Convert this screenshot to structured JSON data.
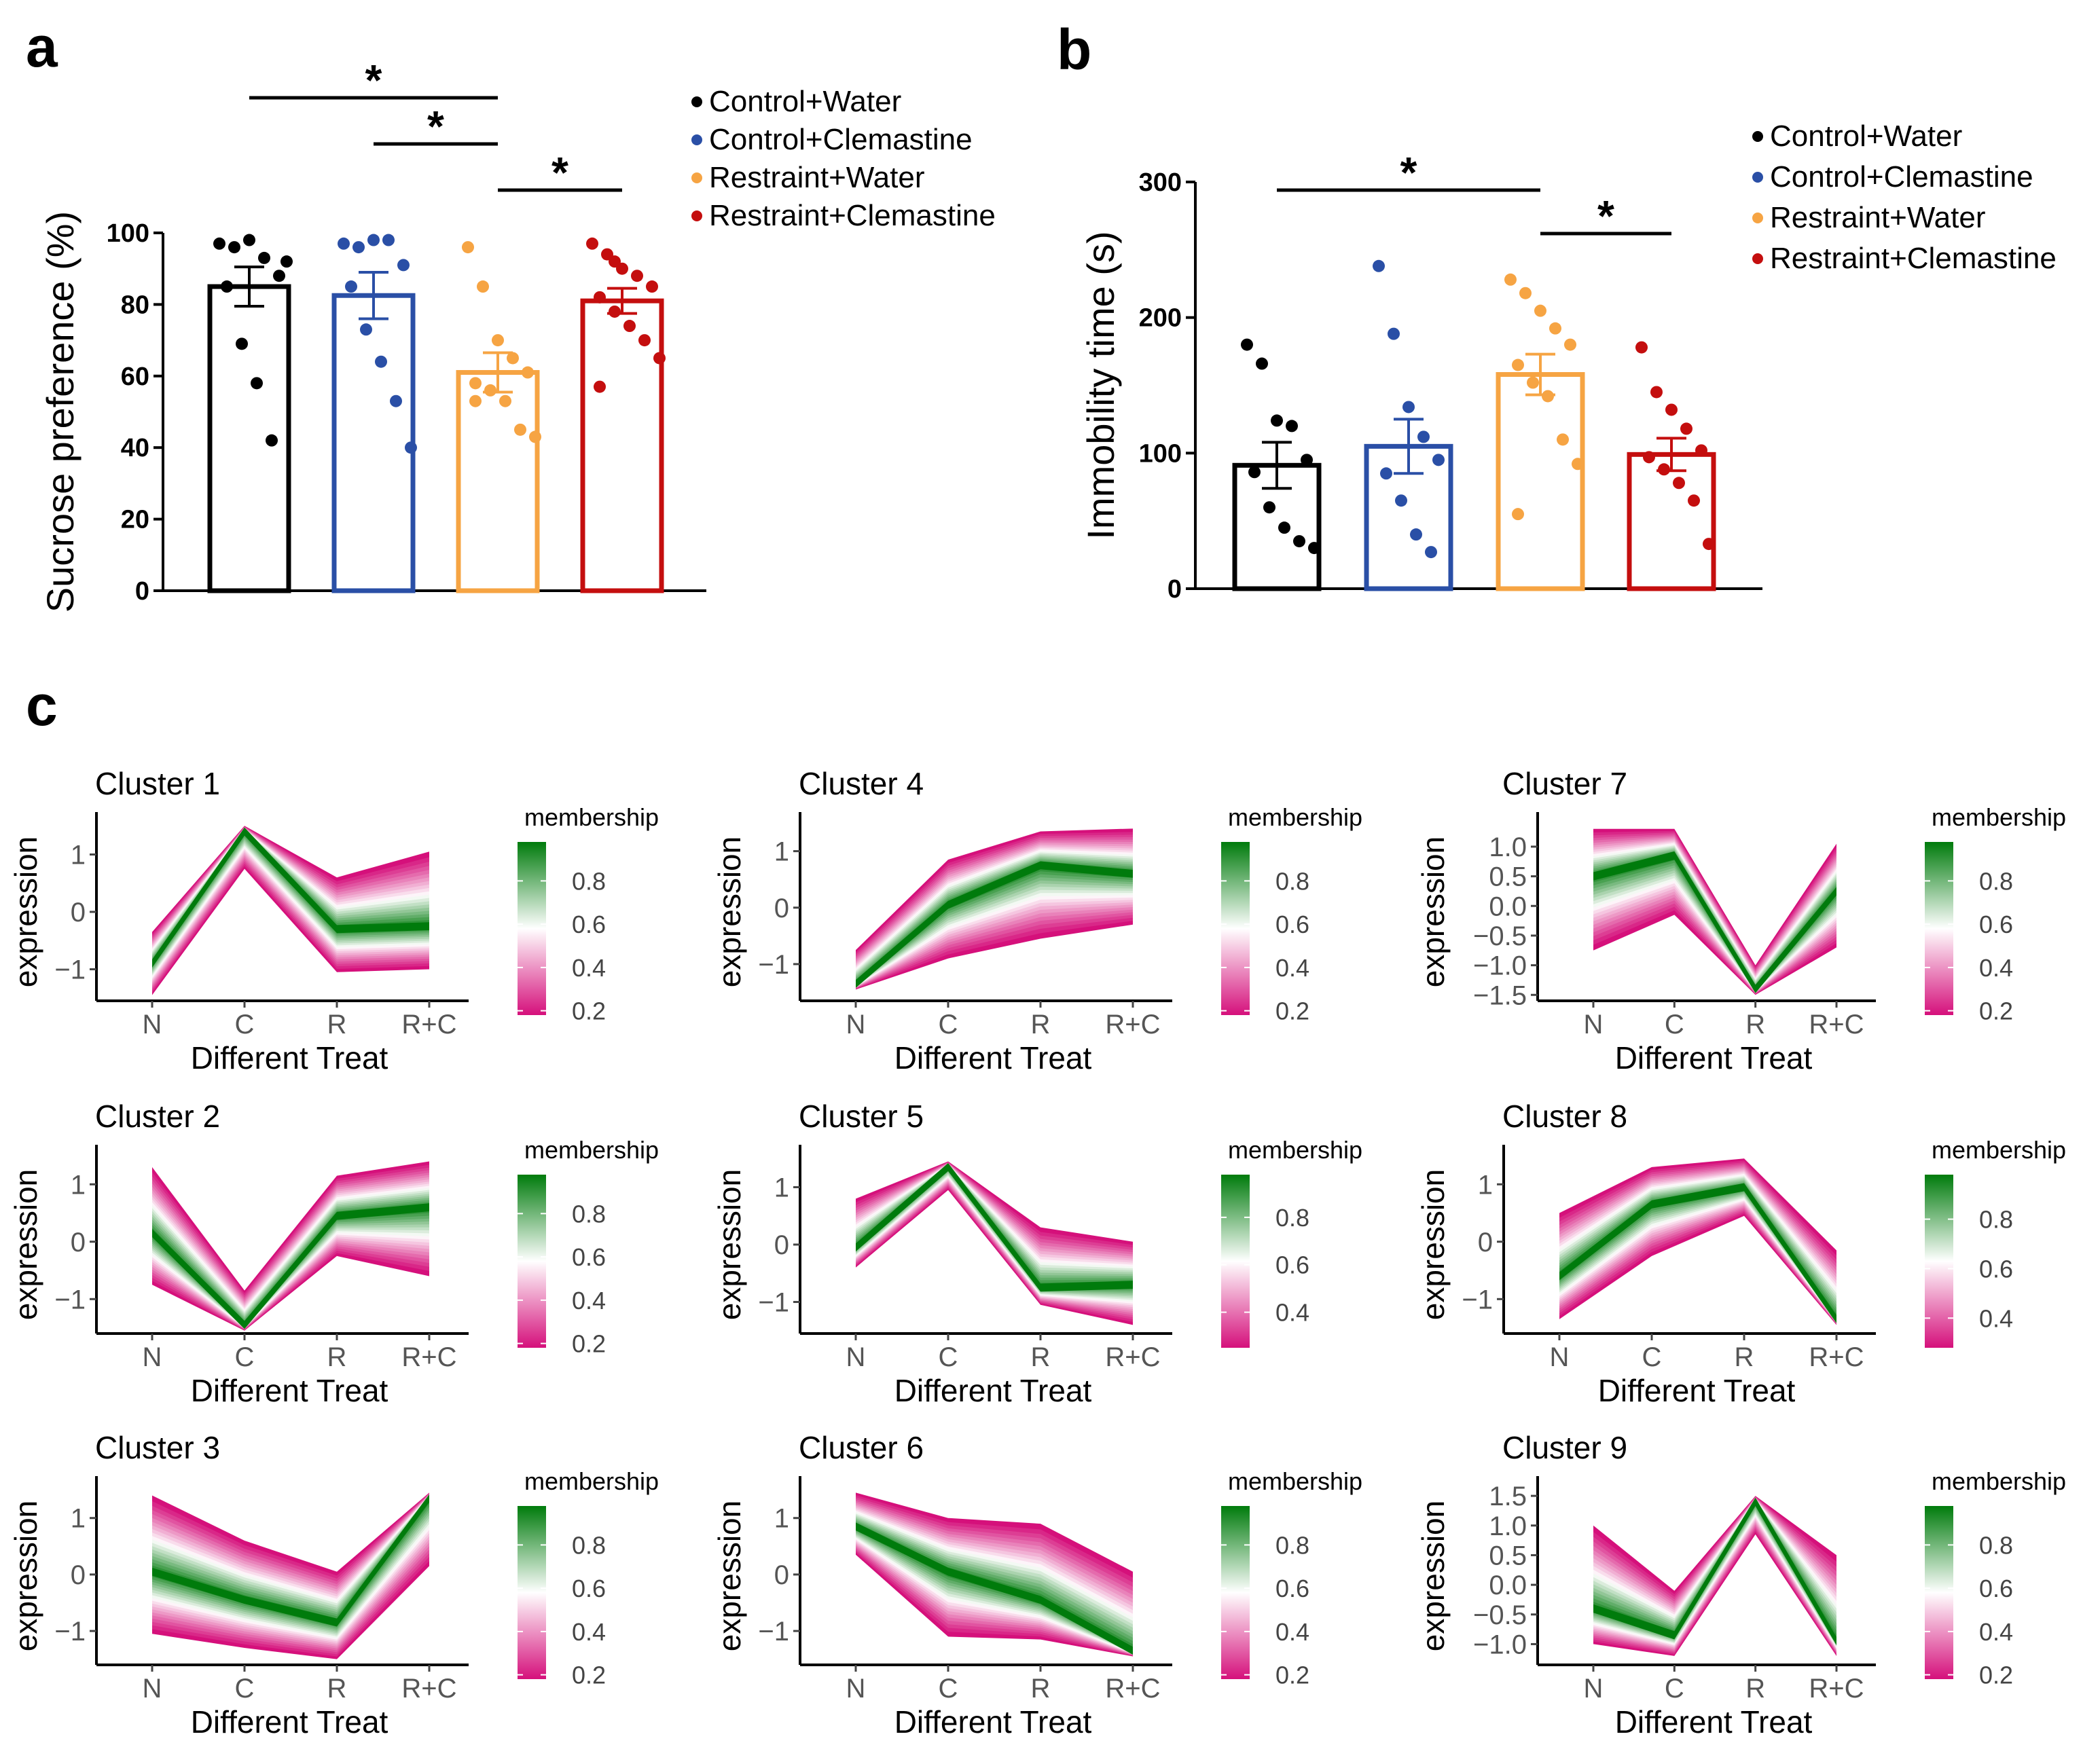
{
  "panels": {
    "a": "a",
    "b": "b",
    "c": "c"
  },
  "colors": {
    "Control+Water": "#000000",
    "Control+Clemastine": "#2a4fa6",
    "Restraint+Water": "#f6a443",
    "Restraint+Clemastine": "#c40e0e",
    "membership_low": "#d5107b",
    "membership_mid": "#ffffff",
    "membership_high": "#007b0c"
  },
  "chart_data": [
    {
      "id": "a",
      "type": "bar",
      "ylabel": "Sucrose preference (%)",
      "ylim": [
        0,
        100
      ],
      "yticks": [
        0,
        20,
        40,
        60,
        80,
        100
      ],
      "legend": [
        "Control+Water",
        "Control+Clemastine",
        "Restraint+Water",
        "Restraint+Clemastine"
      ],
      "legend_position": "top-right",
      "categories": [
        "Control+Water",
        "Control+Clemastine",
        "Restraint+Water",
        "Restraint+Clemastine"
      ],
      "values": [
        85,
        82.5,
        61,
        81
      ],
      "sem": [
        5.5,
        6.5,
        5.5,
        3.5
      ],
      "points": [
        [
          97,
          96,
          98,
          93,
          88,
          85,
          69,
          58,
          42,
          92
        ],
        [
          97,
          96,
          98,
          98,
          91,
          85,
          73,
          64,
          53,
          40
        ],
        [
          96,
          85,
          70,
          65,
          61,
          58,
          56,
          53,
          45,
          43,
          53
        ],
        [
          97,
          94,
          90,
          88,
          85,
          82,
          78,
          74,
          70,
          65,
          57,
          92
        ]
      ],
      "significance": [
        {
          "from": 0,
          "to": 2,
          "label": "*"
        },
        {
          "from": 1,
          "to": 2,
          "label": "*"
        },
        {
          "from": 2,
          "to": 3,
          "label": "*"
        }
      ]
    },
    {
      "id": "b",
      "type": "bar",
      "ylabel": "Immobility time (s)",
      "ylim": [
        0,
        300
      ],
      "yticks": [
        0,
        100,
        200,
        300
      ],
      "legend": [
        "Control+Water",
        "Control+Clemastine",
        "Restraint+Water",
        "Restraint+Clemastine"
      ],
      "legend_position": "top-right",
      "categories": [
        "Control+Water",
        "Control+Clemastine",
        "Restraint+Water",
        "Restraint+Clemastine"
      ],
      "values": [
        91,
        105,
        158,
        99
      ],
      "sem": [
        17,
        20,
        15,
        12
      ],
      "points": [
        [
          180,
          166,
          124,
          120,
          95,
          86,
          60,
          45,
          35,
          30
        ],
        [
          238,
          188,
          134,
          112,
          95,
          85,
          65,
          40,
          27
        ],
        [
          228,
          218,
          205,
          192,
          180,
          165,
          152,
          142,
          110,
          92,
          55
        ],
        [
          178,
          145,
          132,
          118,
          102,
          97,
          88,
          78,
          65,
          33
        ]
      ],
      "significance": [
        {
          "from": 0,
          "to": 2,
          "label": "*"
        },
        {
          "from": 2,
          "to": 3,
          "label": "*"
        }
      ]
    },
    {
      "id": "c",
      "type": "line",
      "xlabel": "Different Treat",
      "ylabel": "expression",
      "categories": [
        "N",
        "C",
        "R",
        "R+C"
      ],
      "membership_label": "membership",
      "clusters": [
        {
          "title": "Cluster 1",
          "ylim": [
            -1.55,
            1.55
          ],
          "yticks": [
            "1",
            "0",
            "−1"
          ],
          "ytickvals": [
            1,
            0,
            -1
          ],
          "mticks": [
            "0.8",
            "0.6",
            "0.4",
            "0.2"
          ],
          "mtickvals": [
            0.8,
            0.6,
            0.4,
            0.2
          ],
          "mrange": [
            0.18,
            0.98
          ],
          "core": [
            -0.9,
            1.4,
            -0.3,
            -0.25
          ],
          "upper": [
            -0.35,
            1.5,
            0.6,
            1.05
          ],
          "lower": [
            -1.45,
            0.75,
            -1.05,
            -1.0
          ]
        },
        {
          "title": "Cluster 2",
          "ylim": [
            -1.6,
            1.5
          ],
          "yticks": [
            "1",
            "0",
            "−1"
          ],
          "ytickvals": [
            1,
            0,
            -1
          ],
          "mticks": [
            "0.8",
            "0.6",
            "0.4",
            "0.2"
          ],
          "mtickvals": [
            0.8,
            0.6,
            0.4,
            0.2
          ],
          "mrange": [
            0.18,
            0.98
          ],
          "core": [
            0.15,
            -1.45,
            0.45,
            0.6
          ],
          "upper": [
            1.3,
            -0.85,
            1.15,
            1.4
          ],
          "lower": [
            -0.75,
            -1.55,
            -0.25,
            -0.6
          ]
        },
        {
          "title": "Cluster 3",
          "ylim": [
            -1.6,
            1.55
          ],
          "yticks": [
            "1",
            "0",
            "−1"
          ],
          "ytickvals": [
            1,
            0,
            -1
          ],
          "mticks": [
            "0.8",
            "0.6",
            "0.4",
            "0.2"
          ],
          "mtickvals": [
            0.8,
            0.6,
            0.4,
            0.2
          ],
          "mrange": [
            0.18,
            0.98
          ],
          "core": [
            0.05,
            -0.45,
            -0.85,
            1.35
          ],
          "upper": [
            1.4,
            0.6,
            0.05,
            1.45
          ],
          "lower": [
            -1.05,
            -1.3,
            -1.5,
            0.15
          ]
        },
        {
          "title": "Cluster 4",
          "ylim": [
            -1.65,
            1.5
          ],
          "yticks": [
            "1",
            "0",
            "−1"
          ],
          "ytickvals": [
            1,
            0,
            -1
          ],
          "mticks": [
            "0.8",
            "0.6",
            "0.4",
            "0.2"
          ],
          "mtickvals": [
            0.8,
            0.6,
            0.4,
            0.2
          ],
          "mrange": [
            0.18,
            0.98
          ],
          "core": [
            -1.35,
            0.05,
            0.75,
            0.6
          ],
          "upper": [
            -0.75,
            0.85,
            1.35,
            1.4
          ],
          "lower": [
            -1.45,
            -0.9,
            -0.55,
            -0.3
          ]
        },
        {
          "title": "Cluster 5",
          "ylim": [
            -1.55,
            1.55
          ],
          "yticks": [
            "1",
            "0",
            "−1"
          ],
          "ytickvals": [
            1,
            0,
            -1
          ],
          "mticks": [
            "0.8",
            "0.6",
            "0.4"
          ],
          "mtickvals": [
            0.8,
            0.6,
            0.4
          ],
          "mrange": [
            0.25,
            0.98
          ],
          "core": [
            -0.05,
            1.35,
            -0.75,
            -0.7
          ],
          "upper": [
            0.8,
            1.45,
            0.3,
            0.05
          ],
          "lower": [
            -0.4,
            0.95,
            -1.05,
            -1.4
          ]
        },
        {
          "title": "Cluster 6",
          "ylim": [
            -1.6,
            1.55
          ],
          "yticks": [
            "1",
            "0",
            "−1"
          ],
          "ytickvals": [
            1,
            0,
            -1
          ],
          "mticks": [
            "0.8",
            "0.6",
            "0.4",
            "0.2"
          ],
          "mtickvals": [
            0.8,
            0.6,
            0.4,
            0.2
          ],
          "mrange": [
            0.18,
            0.98
          ],
          "core": [
            0.85,
            0.05,
            -0.45,
            -1.35
          ],
          "upper": [
            1.45,
            1.0,
            0.9,
            0.05
          ],
          "lower": [
            0.35,
            -1.1,
            -1.15,
            -1.45
          ]
        },
        {
          "title": "Cluster 7",
          "ylim": [
            -1.6,
            1.4
          ],
          "yticks": [
            "1.0",
            "0.5",
            "0.0",
            "−0.5",
            "−1.0",
            "−1.5"
          ],
          "ytickvals": [
            1.0,
            0.5,
            0.0,
            -0.5,
            -1.0,
            -1.5
          ],
          "mticks": [
            "0.8",
            "0.6",
            "0.4",
            "0.2"
          ],
          "mtickvals": [
            0.8,
            0.6,
            0.4,
            0.2
          ],
          "mrange": [
            0.18,
            0.98
          ],
          "core": [
            0.5,
            0.85,
            -1.4,
            0.25
          ],
          "upper": [
            1.3,
            1.3,
            -1.0,
            1.05
          ],
          "lower": [
            -0.75,
            -0.15,
            -1.5,
            -0.7
          ]
        },
        {
          "title": "Cluster 8",
          "ylim": [
            -1.6,
            1.5
          ],
          "yticks": [
            "1",
            "0",
            "−1"
          ],
          "ytickvals": [
            1,
            0,
            -1
          ],
          "mticks": [
            "0.8",
            "0.6",
            "0.4"
          ],
          "mtickvals": [
            0.8,
            0.6,
            0.4
          ],
          "mrange": [
            0.28,
            0.98
          ],
          "core": [
            -0.6,
            0.65,
            0.95,
            -1.35
          ],
          "upper": [
            0.5,
            1.3,
            1.45,
            -0.15
          ],
          "lower": [
            -1.35,
            -0.25,
            0.45,
            -1.45
          ]
        },
        {
          "title": "Cluster 9",
          "ylim": [
            -1.35,
            1.65
          ],
          "yticks": [
            "1.5",
            "1.0",
            "0.5",
            "0.0",
            "−0.5",
            "−1.0"
          ],
          "ytickvals": [
            1.5,
            1.0,
            0.5,
            0.0,
            -0.5,
            -1.0
          ],
          "mticks": [
            "0.8",
            "0.6",
            "0.4",
            "0.2"
          ],
          "mtickvals": [
            0.8,
            0.6,
            0.4,
            0.2
          ],
          "mrange": [
            0.18,
            0.98
          ],
          "core": [
            -0.4,
            -0.85,
            1.4,
            -0.95
          ],
          "upper": [
            1.0,
            -0.1,
            1.5,
            0.5
          ],
          "lower": [
            -1.0,
            -1.2,
            0.85,
            -1.2
          ]
        }
      ]
    }
  ]
}
